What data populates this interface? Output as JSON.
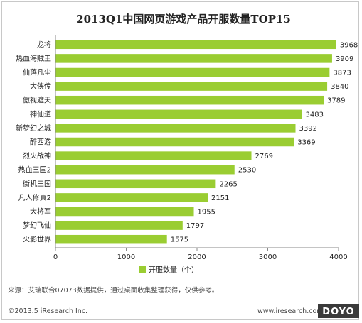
{
  "chart_data": {
    "type": "bar",
    "orientation": "horizontal",
    "title": "2013Q1中国网页游戏产品开服数量TOP15",
    "categories": [
      "龙将",
      "热血海贼王",
      "仙落凡尘",
      "大侠传",
      "傲视遮天",
      "神仙道",
      "新梦幻之城",
      "醉西游",
      "烈火战神",
      "热血三国2",
      "街机三国",
      "凡人修真2",
      "大将军",
      "梦幻飞仙",
      "火影世界"
    ],
    "series": [
      {
        "name": "开服数量（个）",
        "values": [
          3968,
          3909,
          3873,
          3840,
          3789,
          3483,
          3392,
          3369,
          2769,
          2530,
          2265,
          2151,
          1955,
          1797,
          1575
        ]
      }
    ],
    "xlim": [
      0,
      4000
    ],
    "xticks": [
      "0",
      "1000",
      "2000",
      "3000",
      "4000"
    ],
    "grid": false,
    "legend": "bottom",
    "bar_color": "#9acd32"
  },
  "footer": {
    "source": "来源：艾瑞联合07073数据提供，通过桌面收集整理获得，仅供参考。",
    "copyright": "©2013.5 iResearch Inc.",
    "website": "www.iresearch.com.cn",
    "watermark": "DOYO"
  }
}
